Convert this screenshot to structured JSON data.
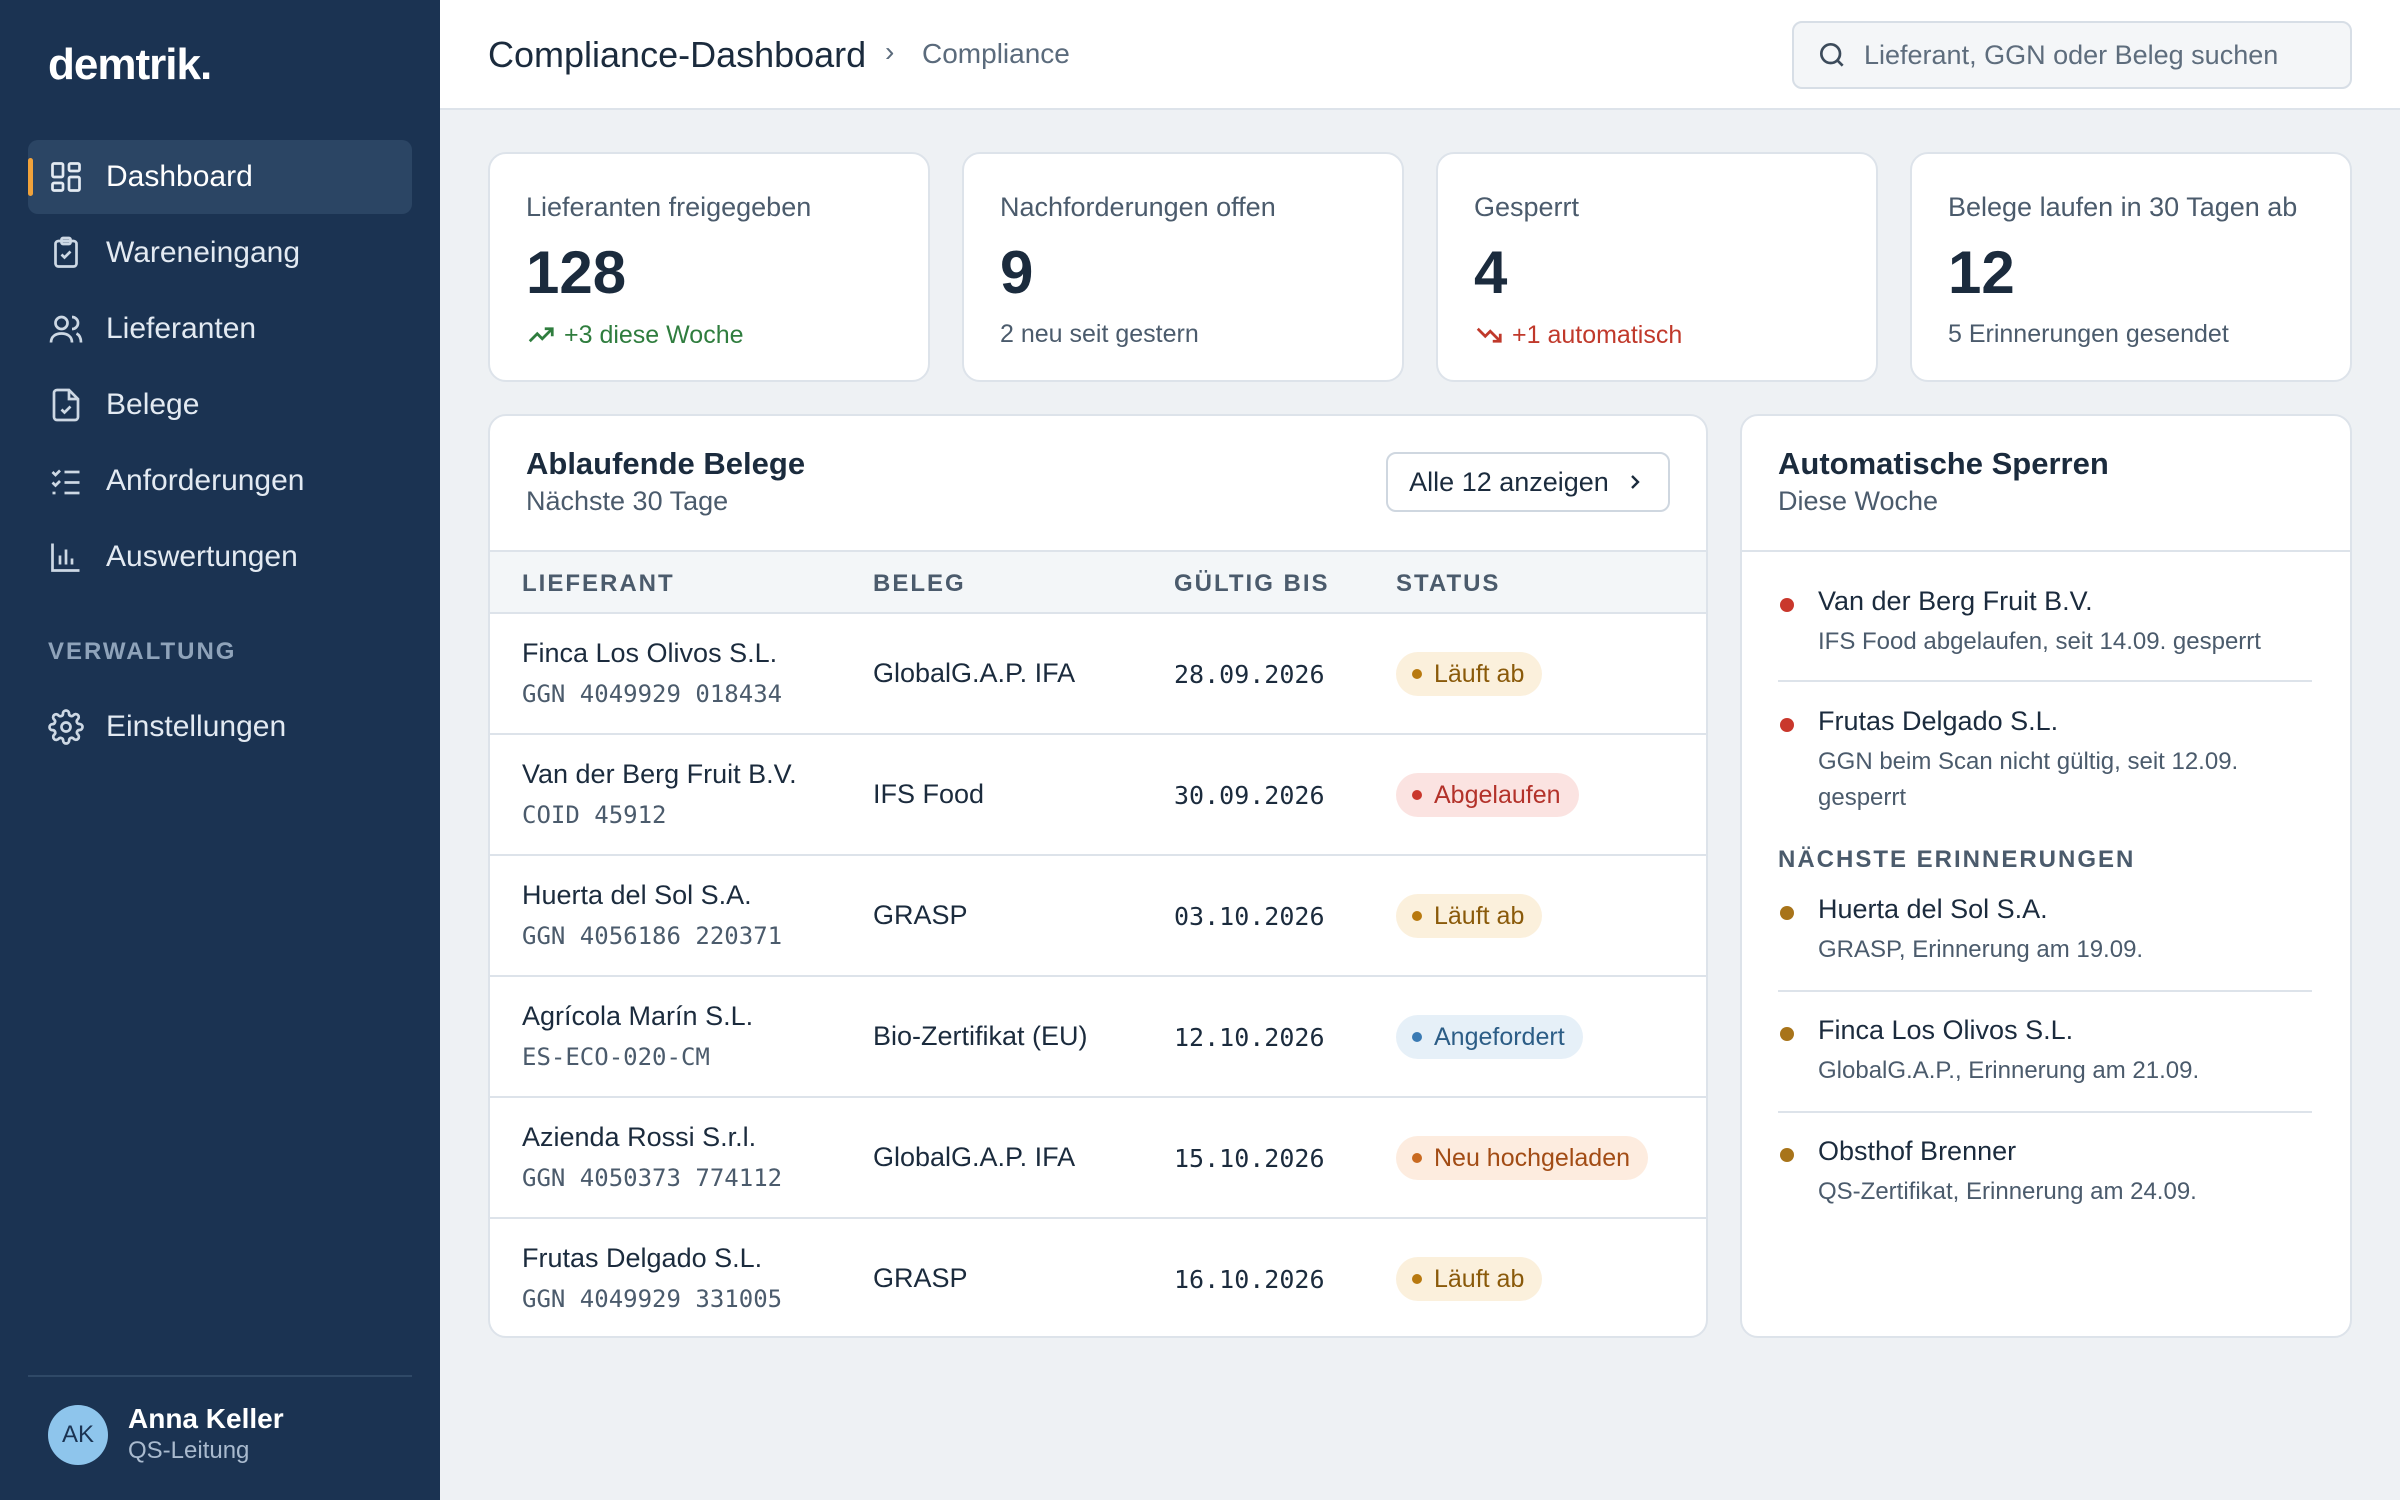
{
  "app": {
    "logo": "demtrik."
  },
  "sidebar": {
    "items": [
      {
        "label": "Dashboard",
        "icon": "dashboard-icon"
      },
      {
        "label": "Wareneingang",
        "icon": "clipboard-icon"
      },
      {
        "label": "Lieferanten",
        "icon": "users-icon"
      },
      {
        "label": "Belege",
        "icon": "document-check-icon"
      },
      {
        "label": "Anforderungen",
        "icon": "checklist-icon"
      },
      {
        "label": "Auswertungen",
        "icon": "bar-chart-icon"
      }
    ],
    "section_label": "VERWALTUNG",
    "admin_items": [
      {
        "label": "Einstellungen",
        "icon": "gear-icon"
      }
    ],
    "user": {
      "initials": "AK",
      "name": "Anna Keller",
      "role": "QS-Leitung"
    }
  },
  "header": {
    "title": "Compliance-Dashboard",
    "breadcrumb": "Compliance",
    "search_placeholder": "Lieferant, GGN oder Beleg suchen"
  },
  "kpis": [
    {
      "label": "Lieferanten freigegeben",
      "value": "128",
      "sub": "+3 diese Woche",
      "trend": "up"
    },
    {
      "label": "Nachforderungen offen",
      "value": "9",
      "sub": "2 neu seit gestern",
      "trend": "none"
    },
    {
      "label": "Gesperrt",
      "value": "4",
      "sub": "+1 automatisch",
      "trend": "down"
    },
    {
      "label": "Belege laufen in 30 Tagen ab",
      "value": "12",
      "sub": "5 Erinnerungen gesendet",
      "trend": "none"
    }
  ],
  "expiring": {
    "title": "Ablaufende Belege",
    "subtitle": "Nächste 30 Tage",
    "button_label": "Alle 12 anzeigen",
    "columns": [
      "LIEFERANT",
      "BELEG",
      "GÜLTIG BIS",
      "STATUS"
    ],
    "rows": [
      {
        "name": "Finca Los Olivos S.L.",
        "id": "GGN 4049929 018434",
        "doc": "GlobalG.A.P. IFA",
        "date": "28.09.2026",
        "status": "Läuft ab",
        "kind": "warn"
      },
      {
        "name": "Van der Berg Fruit B.V.",
        "id": "COID 45912",
        "doc": "IFS Food",
        "date": "30.09.2026",
        "status": "Abgelaufen",
        "kind": "err"
      },
      {
        "name": "Huerta del Sol S.A.",
        "id": "GGN 4056186 220371",
        "doc": "GRASP",
        "date": "03.10.2026",
        "status": "Läuft ab",
        "kind": "warn"
      },
      {
        "name": "Agrícola Marín S.L.",
        "id": "ES-ECO-020-CM",
        "doc": "Bio-Zertifikat (EU)",
        "date": "12.10.2026",
        "status": "Angefordert",
        "kind": "info"
      },
      {
        "name": "Azienda Rossi S.r.l.",
        "id": "GGN 4050373 774112",
        "doc": "GlobalG.A.P. IFA",
        "date": "15.10.2026",
        "status": "Neu hochgeladen",
        "kind": "new"
      },
      {
        "name": "Frutas Delgado S.L.",
        "id": "GGN 4049929 331005",
        "doc": "GRASP",
        "date": "16.10.2026",
        "status": "Läuft ab",
        "kind": "warn"
      }
    ]
  },
  "blocks": {
    "title": "Automatische Sperren",
    "subtitle": "Diese Woche",
    "items": [
      {
        "name": "Van der Berg Fruit B.V.",
        "desc": "IFS Food abgelaufen, seit 14.09. gesperrt"
      },
      {
        "name": "Frutas Delgado S.L.",
        "desc": "GGN beim Scan nicht gültig, seit 12.09. gesperrt"
      }
    ],
    "reminders_label": "NÄCHSTE ERINNERUNGEN",
    "reminders": [
      {
        "name": "Huerta del Sol S.A.",
        "desc": "GRASP, Erinnerung am 19.09."
      },
      {
        "name": "Finca Los Olivos S.L.",
        "desc": "GlobalG.A.P., Erinnerung am 21.09."
      },
      {
        "name": "Obsthof Brenner",
        "desc": "QS-Zertifikat, Erinnerung am 24.09."
      }
    ]
  },
  "colors": {
    "sidebar": "#1b3352",
    "accent": "#f0a23b",
    "positive": "#2f7d3e",
    "negative": "#c0392b",
    "warning": "#b8790f"
  }
}
